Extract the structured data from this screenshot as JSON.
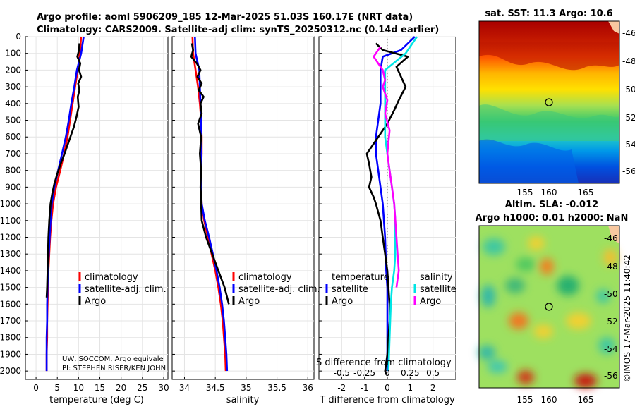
{
  "header": {
    "title_line1": "Argo profile: aoml 5906209_185 12-Mar-2025 51.03S 160.17E (NRT data)",
    "title_line2": "Climatology: CARS2009. Satellite-adj clim: synTS_20250312.nc (0.14d earlier)"
  },
  "colors": {
    "climatology": "#ff0000",
    "satellite": "#0000ff",
    "argo": "#000000",
    "sat_salinity": "#00e5e5",
    "argo_salinity": "#ff00ff"
  },
  "chart_data": [
    {
      "id": "temperature",
      "type": "line",
      "xlabel": "temperature (deg C)",
      "xlim": [
        -2.5,
        31
      ],
      "ylim": [
        0,
        2050
      ],
      "xticks": [
        "0",
        "5",
        "10",
        "15",
        "20",
        "25",
        "30"
      ],
      "xtick_values": [
        0,
        5,
        10,
        15,
        20,
        25,
        30
      ],
      "yticks": [
        "0",
        "100",
        "200",
        "300",
        "400",
        "500",
        "600",
        "700",
        "800",
        "900",
        "1000",
        "1100",
        "1200",
        "1300",
        "1400",
        "1500",
        "1600",
        "1700",
        "1800",
        "1900",
        "2000"
      ],
      "ytick_values": [
        0,
        100,
        200,
        300,
        400,
        500,
        600,
        700,
        800,
        900,
        1000,
        1100,
        1200,
        1300,
        1400,
        1500,
        1600,
        1700,
        1800,
        1900,
        2000
      ],
      "legend": [
        "climatology",
        "satellite-adj. clim.",
        "Argo"
      ],
      "series": [
        {
          "name": "climatology",
          "color": "#ff0000",
          "x": [
            10.6,
            10.3,
            9.8,
            9.2,
            8.6,
            8.0,
            7.4,
            6.6,
            5.7,
            4.7,
            4.0,
            3.6,
            3.3,
            3.1,
            2.9,
            2.8,
            2.7,
            2.6,
            2.6,
            2.5,
            2.5
          ],
          "y": [
            0,
            100,
            200,
            300,
            400,
            500,
            600,
            700,
            800,
            900,
            1000,
            1100,
            1200,
            1300,
            1400,
            1500,
            1600,
            1700,
            1800,
            1900,
            2000
          ]
        },
        {
          "name": "satellite-adj. clim.",
          "color": "#0000ff",
          "x": [
            11.2,
            10.6,
            9.6,
            9.0,
            8.3,
            7.7,
            7.0,
            6.1,
            5.2,
            4.3,
            3.7,
            3.4,
            3.2,
            3.0,
            2.8,
            2.7,
            2.6,
            2.6,
            2.5,
            2.5,
            2.5
          ],
          "y": [
            0,
            100,
            200,
            300,
            400,
            500,
            600,
            700,
            800,
            900,
            1000,
            1100,
            1200,
            1300,
            1400,
            1500,
            1600,
            1700,
            1800,
            1900,
            2000
          ]
        },
        {
          "name": "Argo",
          "color": "#000000",
          "x": [
            10.2,
            10.1,
            9.7,
            10.4,
            10.1,
            10.6,
            9.9,
            10.2,
            9.8,
            10.0,
            9.5,
            8.9,
            7.8,
            6.7,
            5.8,
            5.0,
            4.3,
            3.8,
            3.4,
            3.1,
            2.9,
            2.8,
            2.7,
            2.6,
            2.5
          ],
          "y": [
            40,
            80,
            120,
            160,
            200,
            240,
            280,
            320,
            360,
            420,
            480,
            540,
            620,
            700,
            760,
            820,
            880,
            940,
            1000,
            1100,
            1200,
            1300,
            1400,
            1500,
            1560
          ]
        }
      ]
    },
    {
      "id": "salinity",
      "type": "line",
      "xlabel": "salinity",
      "xlim": [
        33.8,
        36.1
      ],
      "ylim": [
        0,
        2050
      ],
      "xticks": [
        "34",
        "34.5",
        "35",
        "35.5",
        "36"
      ],
      "xtick_values": [
        34,
        34.5,
        35,
        35.5,
        36
      ],
      "legend": [
        "climatology",
        "satellite-adj. clim.",
        "Argo"
      ],
      "series": [
        {
          "name": "climatology",
          "color": "#ff0000",
          "x": [
            34.13,
            34.14,
            34.18,
            34.22,
            34.25,
            34.27,
            34.28,
            34.28,
            34.27,
            34.27,
            34.28,
            34.32,
            34.38,
            34.44,
            34.5,
            34.55,
            34.59,
            34.62,
            34.64,
            34.66,
            34.67
          ],
          "y": [
            0,
            100,
            200,
            300,
            400,
            500,
            600,
            700,
            800,
            900,
            1000,
            1100,
            1200,
            1300,
            1400,
            1500,
            1600,
            1700,
            1800,
            1900,
            2000
          ]
        },
        {
          "name": "satellite-adj. clim.",
          "color": "#0000ff",
          "x": [
            34.17,
            34.18,
            34.24,
            34.25,
            34.26,
            34.27,
            34.27,
            34.27,
            34.27,
            34.27,
            34.28,
            34.33,
            34.4,
            34.46,
            34.52,
            34.57,
            34.61,
            34.64,
            34.66,
            34.68,
            34.69
          ],
          "y": [
            0,
            100,
            200,
            300,
            400,
            500,
            600,
            700,
            800,
            900,
            1000,
            1100,
            1200,
            1300,
            1400,
            1500,
            1600,
            1700,
            1800,
            1900,
            2000
          ]
        },
        {
          "name": "Argo",
          "color": "#000000",
          "x": [
            34.12,
            34.14,
            34.11,
            34.2,
            34.26,
            34.21,
            34.28,
            34.23,
            34.31,
            34.26,
            34.28,
            34.22,
            34.27,
            34.25,
            34.27,
            34.26,
            34.27,
            34.27,
            34.28,
            34.35,
            34.45,
            34.55,
            34.65,
            34.72
          ],
          "y": [
            40,
            80,
            120,
            160,
            200,
            240,
            280,
            320,
            360,
            400,
            460,
            520,
            600,
            700,
            800,
            900,
            950,
            1000,
            1100,
            1200,
            1300,
            1400,
            1500,
            1600
          ]
        }
      ]
    },
    {
      "id": "difference",
      "type": "line",
      "xlabel": "T difference from climatology",
      "xlabel_top": "S difference from climatology",
      "xlim": [
        -3,
        3
      ],
      "ylim": [
        0,
        2050
      ],
      "xticks": [
        "-2",
        "-1",
        "0",
        "1",
        "2"
      ],
      "xtick_values": [
        -2,
        -1,
        0,
        1,
        2
      ],
      "sticks": [
        "-0.5",
        "-0.25",
        "0",
        "0.25",
        "0.5"
      ],
      "stick_values": [
        -2,
        -1,
        0,
        1,
        2
      ],
      "legend_temperature_title": "temperature",
      "legend_salinity_title": "salinity",
      "legend_temperature": [
        "satellite",
        "Argo"
      ],
      "legend_salinity": [
        "satellite",
        "Argo"
      ],
      "series": [
        {
          "name": "temperature satellite",
          "color": "#0000ff",
          "x": [
            1.2,
            0.6,
            -0.2,
            -0.3,
            -0.3,
            -0.3,
            -0.4,
            -0.5,
            -0.5,
            -0.4,
            -0.3,
            -0.2,
            -0.1,
            -0.05,
            0,
            0,
            0,
            0,
            0,
            0
          ],
          "y": [
            0,
            80,
            120,
            200,
            300,
            400,
            500,
            600,
            700,
            800,
            900,
            1000,
            1200,
            1400,
            1500,
            1600,
            1700,
            1800,
            1900,
            2000
          ]
        },
        {
          "name": "temperature Argo",
          "color": "#000000",
          "x": [
            -0.5,
            -0.2,
            0.9,
            0.4,
            0.6,
            0.8,
            0.5,
            0.3,
            0.0,
            -0.9,
            -0.8,
            -0.7,
            -0.8,
            -0.6,
            -0.5,
            -0.3,
            -0.2,
            -0.1,
            0.0,
            0.05,
            0.1,
            0.1,
            0.05,
            0.0,
            -0.1,
            -0.05
          ],
          "y": [
            40,
            80,
            120,
            180,
            240,
            300,
            380,
            440,
            520,
            700,
            760,
            840,
            900,
            960,
            1000,
            1100,
            1200,
            1300,
            1400,
            1500,
            1600,
            1700,
            1800,
            1900,
            2000,
            2020
          ]
        },
        {
          "name": "salinity satellite",
          "color": "#00e5e5",
          "x": [
            1.3,
            0.8,
            -0.1,
            -0.1,
            -0.1,
            -0.1,
            -0.1,
            0,
            0.1,
            0.2,
            0.3,
            0.35,
            0.35,
            0.35,
            0.3,
            0.2,
            0.15,
            0.1,
            0.05
          ],
          "y": [
            0,
            100,
            200,
            300,
            400,
            500,
            600,
            700,
            800,
            900,
            1000,
            1100,
            1200,
            1300,
            1400,
            1500,
            1600,
            1800,
            2000
          ]
        },
        {
          "name": "salinity Argo",
          "color": "#ff00ff",
          "x": [
            -0.3,
            -0.6,
            -0.2,
            -0.1,
            -0.2,
            0.0,
            -0.1,
            0.1,
            0.0,
            0.1,
            0.2,
            0.3,
            0.35,
            0.4,
            0.45,
            0.5,
            0.45,
            0.4
          ],
          "y": [
            60,
            120,
            200,
            260,
            300,
            380,
            460,
            560,
            700,
            800,
            900,
            1000,
            1100,
            1200,
            1300,
            1400,
            1450,
            1500
          ]
        }
      ]
    }
  ],
  "maps": {
    "sst_title": "sat. SST: 11.3 Argo: 10.6",
    "sla_title_line1": "Altim. SLA: -0.012",
    "sla_title_line2": "Argo h1000: 0.01 h2000: NaN",
    "lon_ticks": [
      "155",
      "160",
      "165"
    ],
    "lat_ticks": [
      "-46",
      "-48",
      "-50",
      "-52",
      "-54",
      "-56"
    ]
  },
  "credits": {
    "line1": "UW, SOCCOM, Argo equivale",
    "line2": "PI: STEPHEN RISER/KEN JOHN"
  },
  "watermark": "©IMOS 17-Mar-2025 11:40:42"
}
